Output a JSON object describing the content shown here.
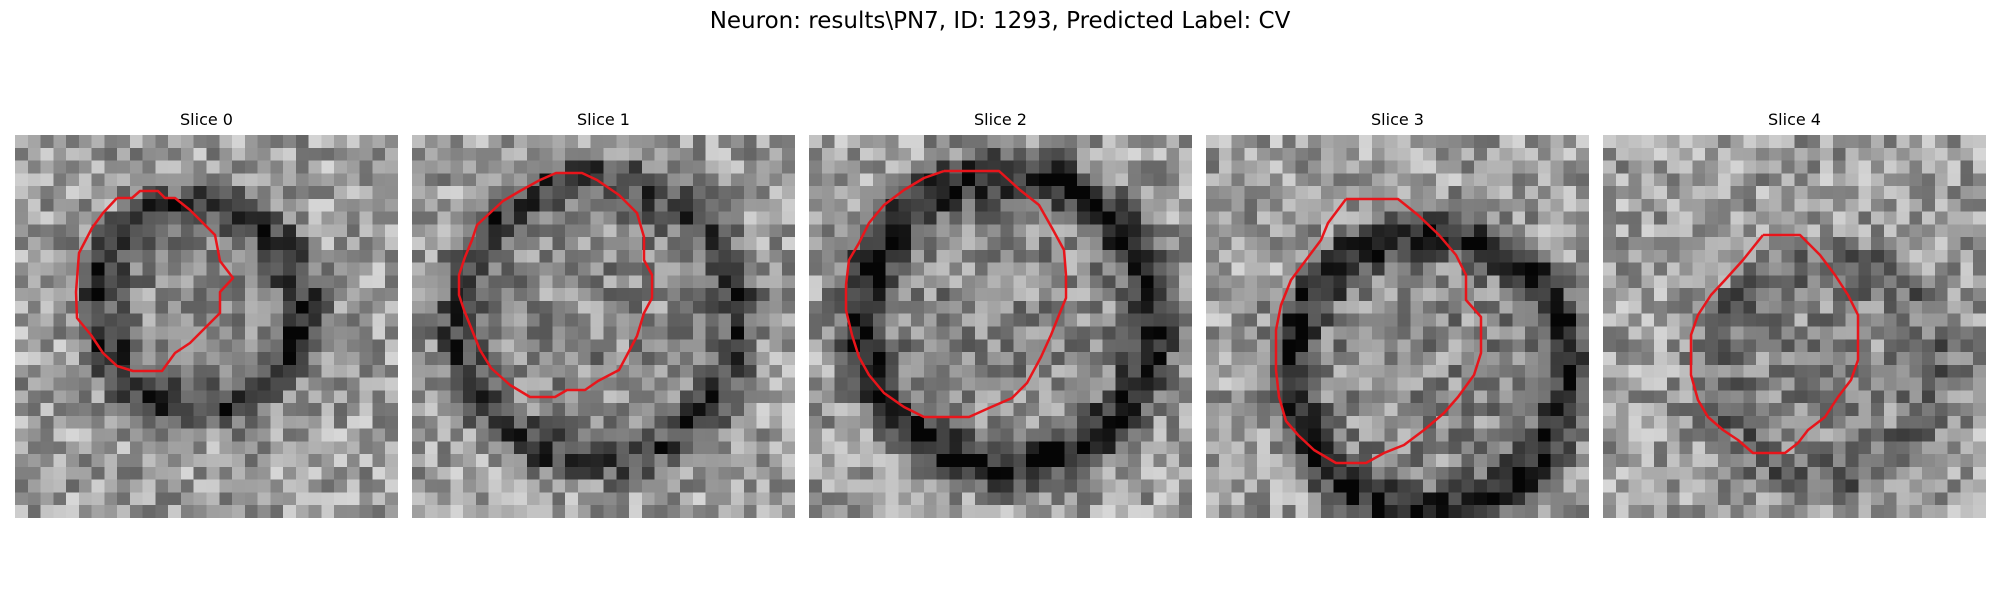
{
  "figure": {
    "title": "Neuron: results\\PN7, ID: 1293, Predicted Label: CV"
  },
  "panels": [
    {
      "title": "Slice 0"
    },
    {
      "title": "Slice 1"
    },
    {
      "title": "Slice 2"
    },
    {
      "title": "Slice 3"
    },
    {
      "title": "Slice 4"
    }
  ],
  "colors": {
    "contour": "#e8151b"
  }
}
